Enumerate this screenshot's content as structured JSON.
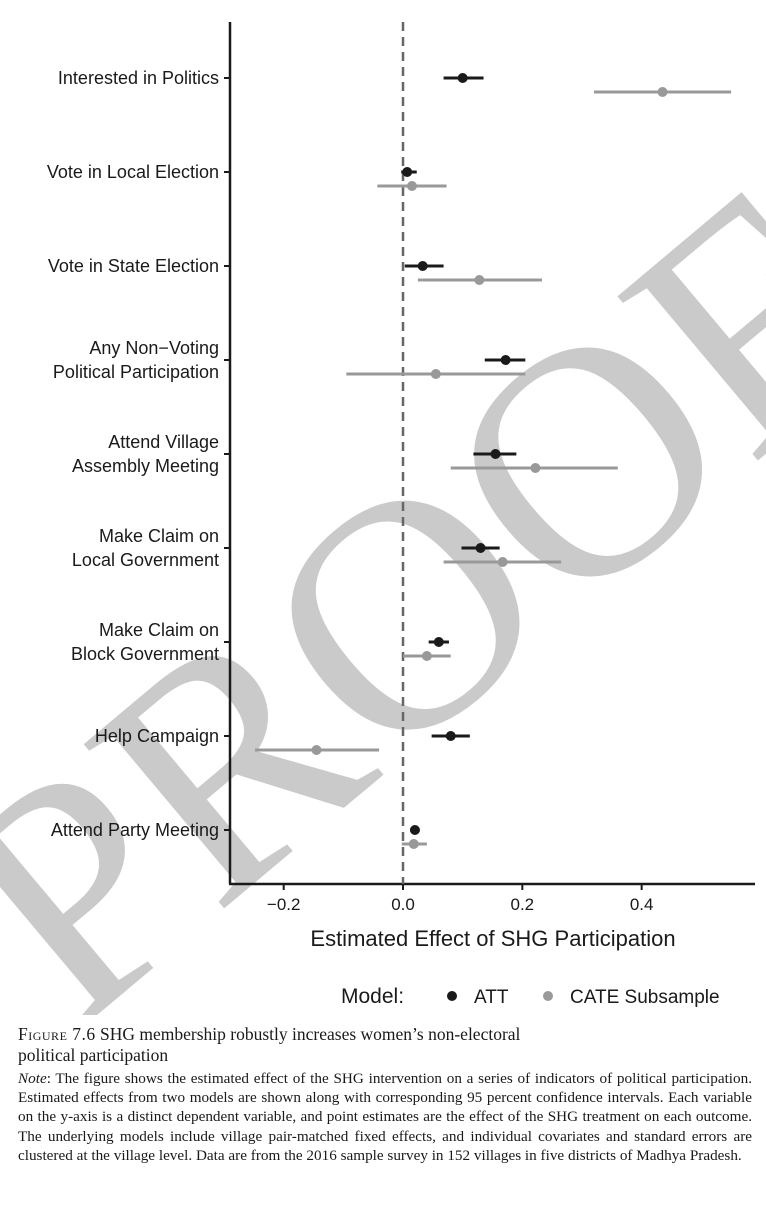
{
  "chart_data": {
    "type": "scatter",
    "subtype": "coefficient-plot",
    "xlabel": "Estimated Effect of SHG Participation",
    "xlim": [
      -0.29,
      0.59
    ],
    "xticks": [
      -0.2,
      0.0,
      0.2,
      0.4
    ],
    "xtick_labels": [
      "−0.2",
      "0.0",
      "0.2",
      "0.4"
    ],
    "reference_line": 0,
    "categories": [
      [
        "Interested in Politics"
      ],
      [
        "Vote in Local Election"
      ],
      [
        "Vote in State Election"
      ],
      [
        "Any Non−Voting",
        "Political Participation"
      ],
      [
        "Attend Village",
        "Assembly Meeting"
      ],
      [
        "Make Claim on",
        "Local Government"
      ],
      [
        "Make Claim on",
        "Block Government"
      ],
      [
        "Help Campaign"
      ],
      [
        "Attend Party Meeting"
      ]
    ],
    "series": [
      {
        "name": "ATT",
        "color": "#1a1a1a",
        "estimates": [
          0.1,
          0.007,
          0.033,
          0.172,
          0.155,
          0.13,
          0.06,
          0.08,
          0.02
        ],
        "ci_low": [
          0.068,
          -0.003,
          0.003,
          0.137,
          0.118,
          0.098,
          0.043,
          0.048,
          0.012
        ],
        "ci_high": [
          0.135,
          0.023,
          0.068,
          0.205,
          0.19,
          0.162,
          0.077,
          0.112,
          0.028
        ]
      },
      {
        "name": "CATE Subsample",
        "color": "#999999",
        "estimates": [
          0.435,
          0.015,
          0.128,
          0.055,
          0.222,
          0.167,
          0.04,
          -0.145,
          0.018
        ],
        "ci_low": [
          0.32,
          -0.043,
          0.025,
          -0.095,
          0.08,
          0.068,
          0.0,
          -0.248,
          -0.002
        ],
        "ci_high": [
          0.55,
          0.073,
          0.233,
          0.205,
          0.36,
          0.265,
          0.08,
          -0.04,
          0.04
        ]
      }
    ],
    "legend": {
      "title": "Model:",
      "position": "bottom"
    }
  },
  "watermark": "PROOF",
  "caption": {
    "label": "Figure 7.6",
    "title_line1": "SHG membership robustly increases women’s non-electoral",
    "title_line2": "political participation",
    "note_label": "Note",
    "note_text": ": The figure shows the estimated effect of the SHG intervention on a series of indicators of political participation. Estimated effects from two models are shown along with corresponding 95 percent confidence intervals. Each variable on the y-axis is a distinct dependent variable, and point estimates are the effect of the SHG treatment on each outcome. The underlying models include village pair-matched fixed effects, and individual covariates and standard errors are clustered at the village level. Data are from the 2016 sample survey in 152 villages in five districts of Madhya Pradesh."
  }
}
